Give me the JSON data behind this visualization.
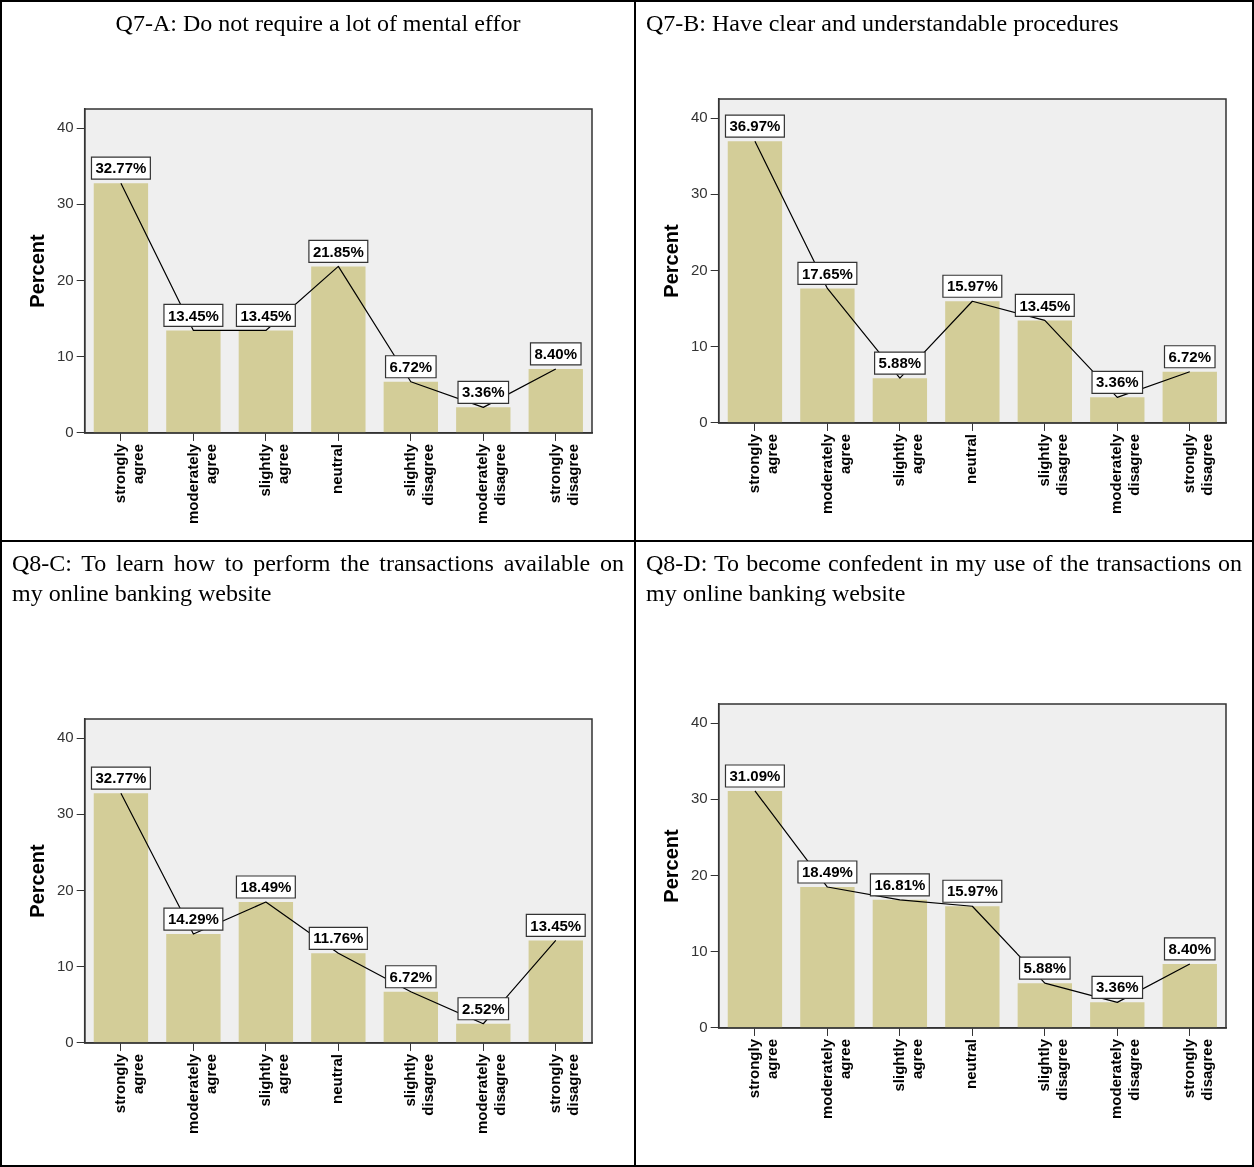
{
  "chart_data": [
    {
      "type": "bar",
      "title": "Q7-A: Do not require a lot of mental effor",
      "ylabel": "Percent",
      "categories": [
        "strongly agree",
        "moderately agree",
        "slightly agree",
        "neutral",
        "slightly disagree",
        "moderately disagree",
        "strongly disagree"
      ],
      "ylim": [
        0,
        42.5
      ],
      "yticks": [
        0,
        10,
        20,
        30,
        40
      ],
      "grid": false,
      "legend": false,
      "series": [
        {
          "color": "#d3cd98",
          "values": [
            32.77,
            13.45,
            13.45,
            21.85,
            6.72,
            3.36,
            8.4
          ],
          "value_labels": [
            "32.77%",
            "13.45%",
            "13.45%",
            "21.85%",
            "6.72%",
            "3.36%",
            "8.40%"
          ]
        },
        {
          "type": "line",
          "color": "#000000",
          "values": [
            32.77,
            13.45,
            13.45,
            21.85,
            6.72,
            3.36,
            8.4
          ]
        }
      ]
    },
    {
      "type": "bar",
      "title": "Q7-B: Have clear and understandable procedures",
      "ylabel": "Percent",
      "categories": [
        "strongly agree",
        "moderately agree",
        "slightly agree",
        "neutral",
        "slightly disagree",
        "moderately disagree",
        "strongly disagree"
      ],
      "ylim": [
        0,
        42.5
      ],
      "yticks": [
        0,
        10,
        20,
        30,
        40
      ],
      "grid": false,
      "legend": false,
      "series": [
        {
          "color": "#d3cd98",
          "values": [
            36.97,
            17.65,
            5.88,
            15.97,
            13.45,
            3.36,
            6.72
          ],
          "value_labels": [
            "36.97%",
            "17.65%",
            "5.88%",
            "15.97%",
            "13.45%",
            "3.36%",
            "6.72%"
          ]
        },
        {
          "type": "line",
          "color": "#000000",
          "values": [
            36.97,
            17.65,
            5.88,
            15.97,
            13.45,
            3.36,
            6.72
          ]
        }
      ]
    },
    {
      "type": "bar",
      "title": "Q8-C: To learn how to perform the transactions available on my online banking website",
      "ylabel": "Percent",
      "categories": [
        "strongly agree",
        "moderately agree",
        "slightly agree",
        "neutral",
        "slightly disagree",
        "moderately disagree",
        "strongly disagree"
      ],
      "ylim": [
        0,
        42.5
      ],
      "yticks": [
        0,
        10,
        20,
        30,
        40
      ],
      "grid": false,
      "legend": false,
      "series": [
        {
          "color": "#d3cd98",
          "values": [
            32.77,
            14.29,
            18.49,
            11.76,
            6.72,
            2.52,
            13.45
          ],
          "value_labels": [
            "32.77%",
            "14.29%",
            "18.49%",
            "11.76%",
            "6.72%",
            "2.52%",
            "13.45%"
          ]
        },
        {
          "type": "line",
          "color": "#000000",
          "values": [
            32.77,
            14.29,
            18.49,
            11.76,
            6.72,
            2.52,
            13.45
          ]
        }
      ]
    },
    {
      "type": "bar",
      "title": "Q8-D: To become confedent in my use of the transactions on my online banking website",
      "ylabel": "Percent",
      "categories": [
        "strongly agree",
        "moderately agree",
        "slightly agree",
        "neutral",
        "slightly disagree",
        "moderately disagree",
        "strongly disagree"
      ],
      "ylim": [
        0,
        42.5
      ],
      "yticks": [
        0,
        10,
        20,
        30,
        40
      ],
      "grid": false,
      "legend": false,
      "series": [
        {
          "color": "#d3cd98",
          "values": [
            31.09,
            18.49,
            16.81,
            15.97,
            5.88,
            3.36,
            8.4
          ],
          "value_labels": [
            "31.09%",
            "18.49%",
            "16.81%",
            "15.97%",
            "5.88%",
            "3.36%",
            "8.40%"
          ]
        },
        {
          "type": "line",
          "color": "#000000",
          "values": [
            31.09,
            18.49,
            16.81,
            15.97,
            5.88,
            3.36,
            8.4
          ]
        }
      ]
    }
  ]
}
